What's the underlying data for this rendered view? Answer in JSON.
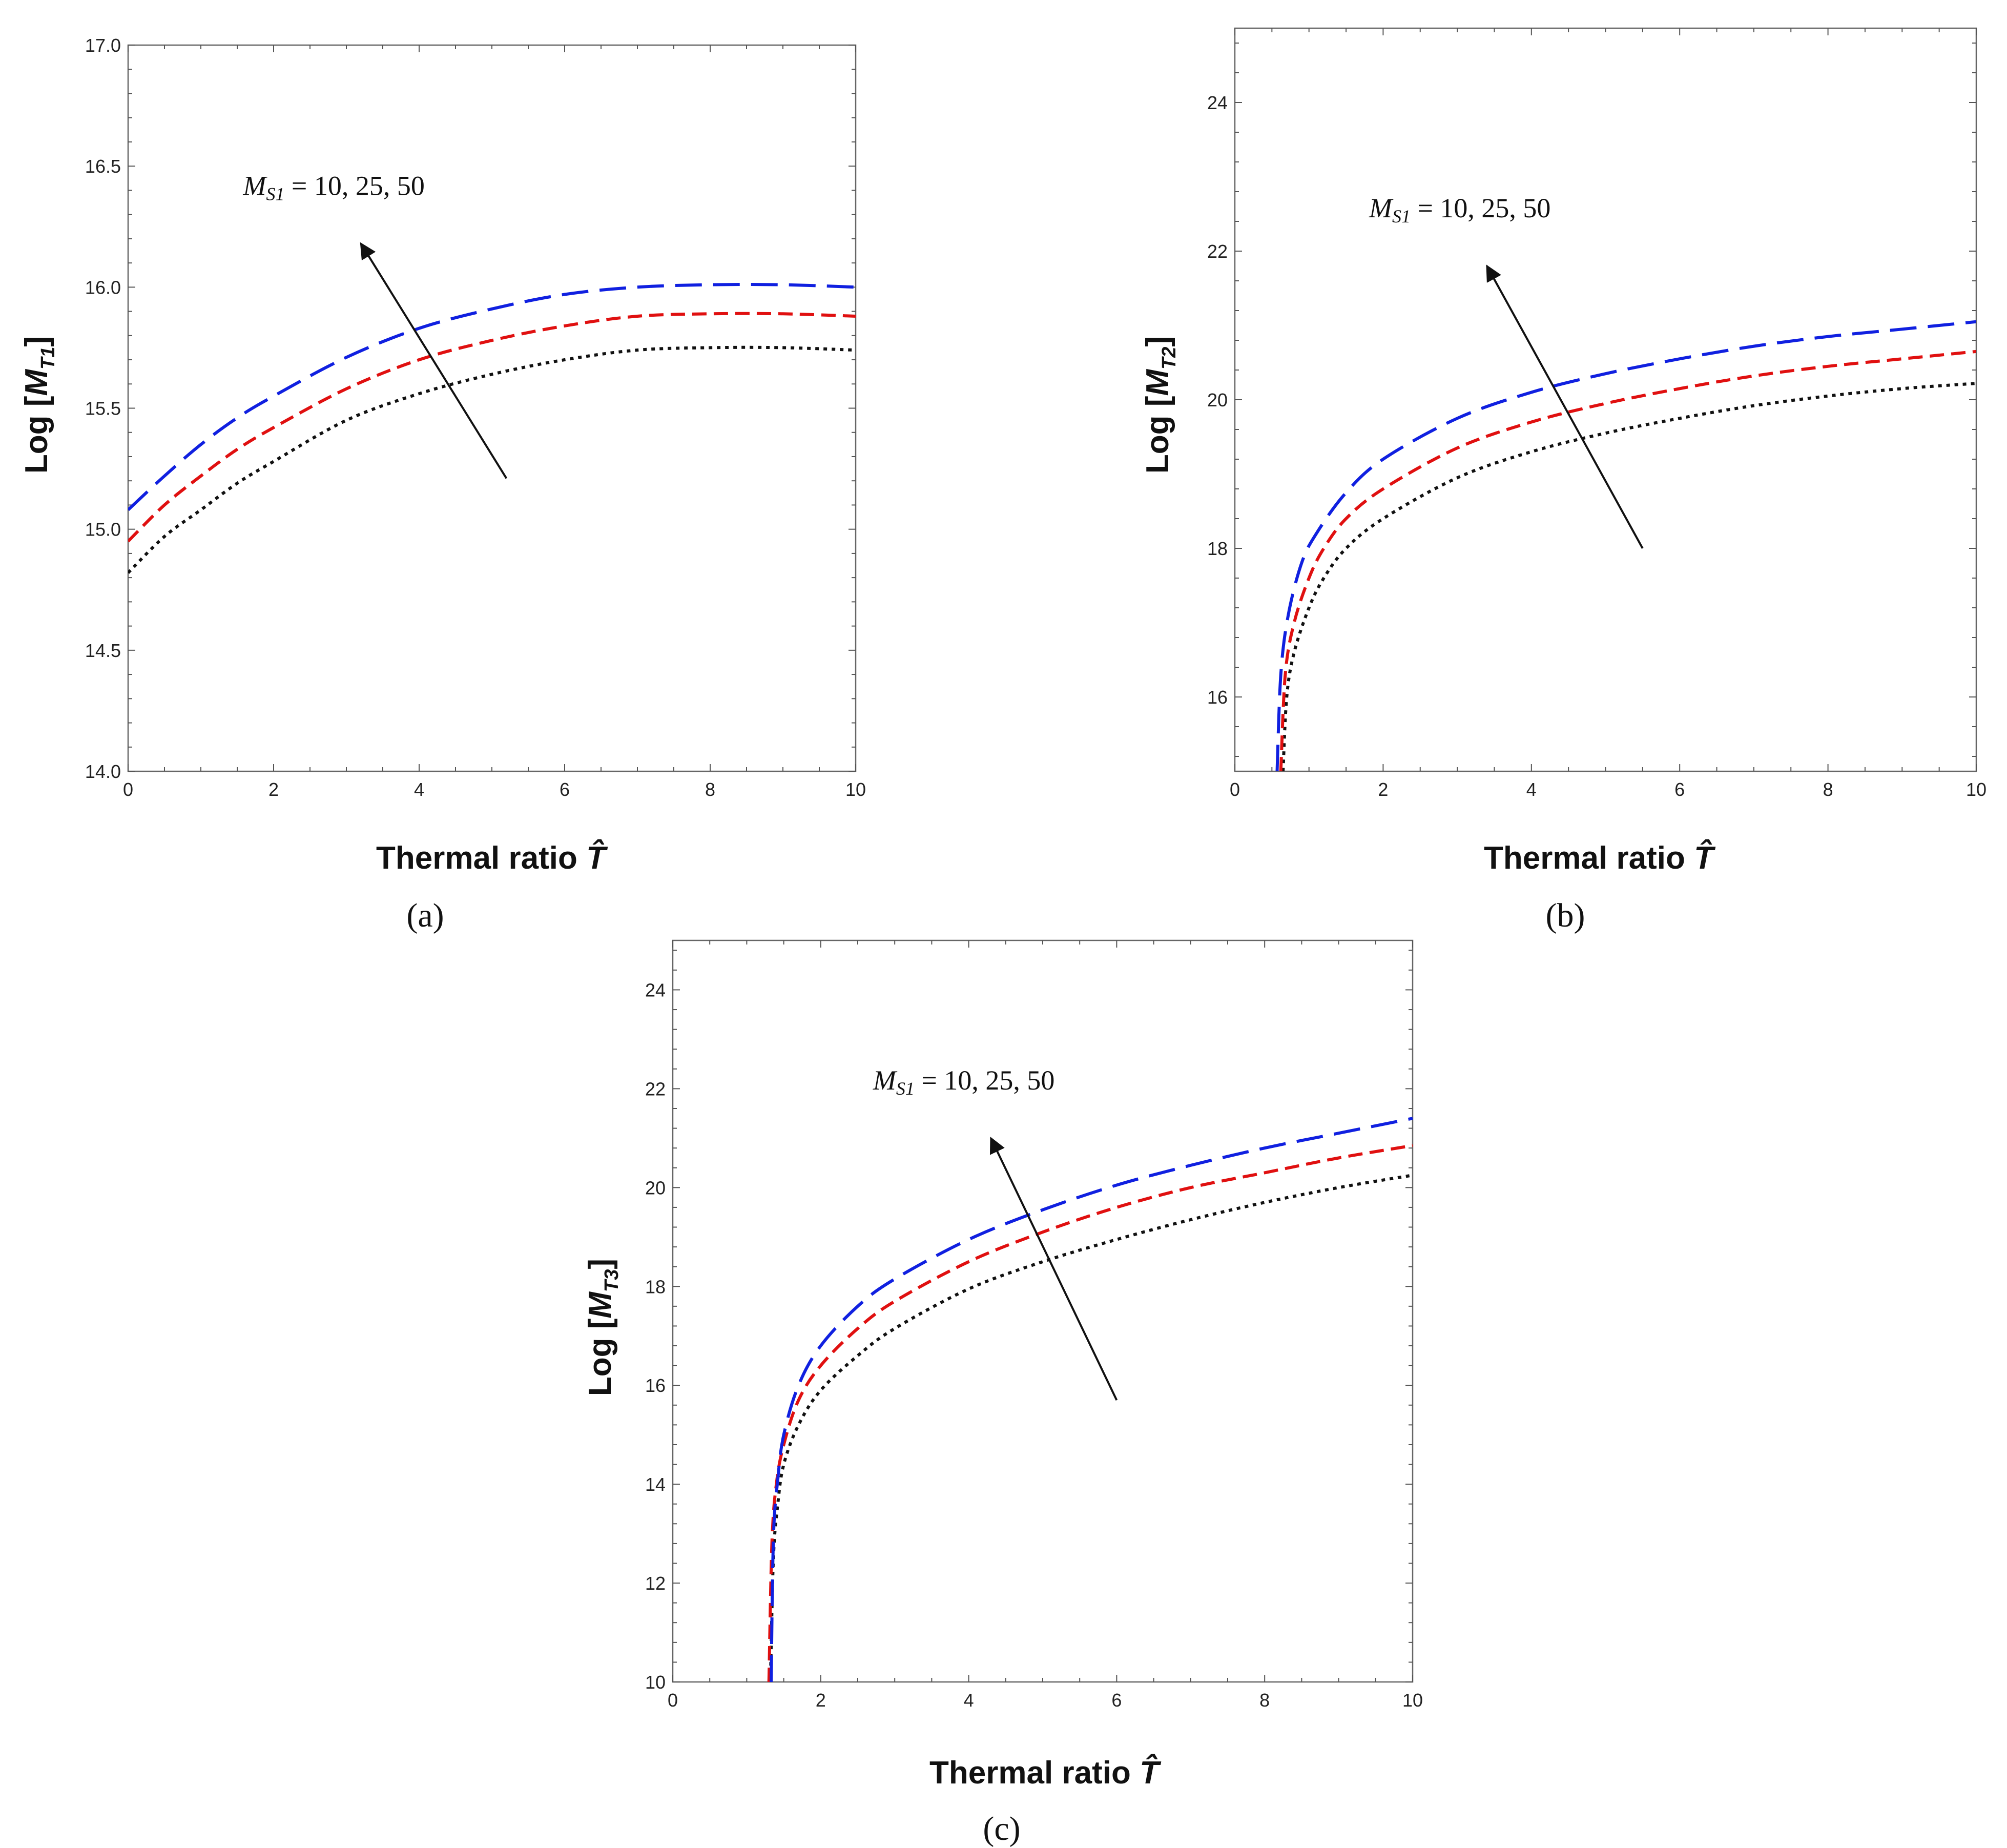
{
  "figure": {
    "panels": [
      "a",
      "b",
      "c"
    ]
  },
  "chart_data": [
    {
      "id": "a",
      "type": "line",
      "panel_label": "(a)",
      "xlabel": "Thermal ratio",
      "xlabel_symbol": "T̂",
      "ylabel": "Log",
      "ylabel_symbol": "M",
      "ylabel_subscript": "T1",
      "xlim": [
        0,
        10
      ],
      "ylim": [
        14.0,
        17.0
      ],
      "xticks": [
        "0",
        "2",
        "4",
        "6",
        "8",
        "10"
      ],
      "yticks": [
        "14.0",
        "14.5",
        "15.0",
        "15.5",
        "16.0",
        "16.5",
        "17.0"
      ],
      "annotation": "M_S1 = 10, 25, 50",
      "annotation_main": "M",
      "annotation_sub": "S1",
      "annotation_rest": " = 10, 25, 50",
      "arrow": {
        "from": [
          5.2,
          15.21
        ],
        "to": [
          3.2,
          16.18
        ]
      },
      "series": [
        {
          "name": "M_S1 = 10",
          "color": "#111111",
          "dash": "dotted",
          "x": [
            0,
            0.5,
            1,
            1.5,
            2,
            3,
            4,
            5,
            6,
            7,
            8,
            9,
            10
          ],
          "y": [
            14.82,
            14.97,
            15.08,
            15.19,
            15.28,
            15.45,
            15.56,
            15.64,
            15.7,
            15.74,
            15.75,
            15.75,
            15.74
          ]
        },
        {
          "name": "M_S1 = 25",
          "color": "#e01010",
          "dash": "medium",
          "x": [
            0,
            0.5,
            1,
            1.5,
            2,
            3,
            4,
            5,
            6,
            7,
            8,
            9,
            10
          ],
          "y": [
            14.95,
            15.1,
            15.22,
            15.33,
            15.42,
            15.58,
            15.7,
            15.78,
            15.84,
            15.88,
            15.89,
            15.89,
            15.88
          ]
        },
        {
          "name": "M_S1 = 50",
          "color": "#1020e0",
          "dash": "long",
          "x": [
            0,
            0.5,
            1,
            1.5,
            2,
            3,
            4,
            5,
            6,
            7,
            8,
            9,
            10
          ],
          "y": [
            15.08,
            15.22,
            15.35,
            15.46,
            15.55,
            15.71,
            15.83,
            15.91,
            15.97,
            16.0,
            16.01,
            16.01,
            16.0
          ]
        }
      ]
    },
    {
      "id": "b",
      "type": "line",
      "panel_label": "(b)",
      "xlabel": "Thermal ratio",
      "xlabel_symbol": "T̂",
      "ylabel": "Log",
      "ylabel_symbol": "M",
      "ylabel_subscript": "T2",
      "xlim": [
        0,
        10
      ],
      "ylim": [
        15,
        25
      ],
      "xticks": [
        "0",
        "2",
        "4",
        "6",
        "8",
        "10"
      ],
      "yticks": [
        "16",
        "18",
        "20",
        "22",
        "24"
      ],
      "annotation": "M_S1 = 10, 25, 50",
      "annotation_main": "M",
      "annotation_sub": "S1",
      "annotation_rest": " = 10, 25, 50",
      "arrow": {
        "from": [
          5.5,
          18.0
        ],
        "to": [
          3.4,
          21.8
        ]
      },
      "series": [
        {
          "name": "M_S1 = 10",
          "color": "#111111",
          "dash": "dotted",
          "x": [
            0.65,
            0.7,
            0.8,
            1.0,
            1.2,
            1.5,
            2,
            3,
            4,
            5,
            6,
            7,
            8,
            9,
            10
          ],
          "y": [
            15.0,
            16.0,
            16.6,
            17.2,
            17.6,
            18.0,
            18.4,
            18.95,
            19.3,
            19.55,
            19.75,
            19.92,
            20.05,
            20.15,
            20.22
          ]
        },
        {
          "name": "M_S1 = 25",
          "color": "#e01010",
          "dash": "medium",
          "x": [
            0.62,
            0.68,
            0.8,
            1.0,
            1.2,
            1.5,
            2,
            3,
            4,
            5,
            6,
            7,
            8,
            9,
            10
          ],
          "y": [
            15.0,
            16.3,
            17.0,
            17.6,
            18.0,
            18.4,
            18.8,
            19.35,
            19.7,
            19.95,
            20.15,
            20.32,
            20.45,
            20.55,
            20.65
          ]
        },
        {
          "name": "M_S1 = 50",
          "color": "#1020e0",
          "dash": "long",
          "x": [
            0.57,
            0.62,
            0.72,
            0.9,
            1.1,
            1.5,
            2,
            3,
            4,
            5,
            6,
            7,
            8,
            9,
            10
          ],
          "y": [
            15.0,
            16.3,
            17.1,
            17.8,
            18.2,
            18.75,
            19.2,
            19.75,
            20.1,
            20.35,
            20.55,
            20.72,
            20.85,
            20.95,
            21.05
          ]
        }
      ]
    },
    {
      "id": "c",
      "type": "line",
      "panel_label": "(c)",
      "xlabel": "Thermal ratio",
      "xlabel_symbol": "T̂",
      "ylabel": "Log",
      "ylabel_symbol": "M",
      "ylabel_subscript": "T3",
      "xlim": [
        0,
        10
      ],
      "ylim": [
        10,
        25
      ],
      "xticks": [
        "0",
        "2",
        "4",
        "6",
        "8",
        "10"
      ],
      "yticks": [
        "10",
        "12",
        "14",
        "16",
        "18",
        "20",
        "22",
        "24"
      ],
      "annotation": "M_S1 = 10, 25, 50",
      "annotation_main": "M",
      "annotation_sub": "S1",
      "annotation_rest": " = 10, 25, 50",
      "arrow": {
        "from": [
          6.0,
          15.7
        ],
        "to": [
          4.3,
          21.0
        ]
      },
      "series": [
        {
          "name": "M_S1 = 10",
          "color": "#111111",
          "dash": "dotted",
          "x": [
            1.32,
            1.36,
            1.42,
            1.5,
            1.7,
            2,
            2.5,
            3,
            4,
            5,
            6,
            7,
            8,
            9,
            10
          ],
          "y": [
            10.0,
            12.5,
            13.6,
            14.4,
            15.2,
            15.9,
            16.6,
            17.15,
            17.95,
            18.5,
            18.95,
            19.35,
            19.7,
            20.0,
            20.25
          ]
        },
        {
          "name": "M_S1 = 25",
          "color": "#e01010",
          "dash": "medium",
          "x": [
            1.3,
            1.34,
            1.4,
            1.5,
            1.7,
            2,
            2.5,
            3,
            4,
            5,
            6,
            7,
            8,
            9,
            10
          ],
          "y": [
            10.0,
            12.8,
            14.0,
            14.8,
            15.7,
            16.4,
            17.15,
            17.7,
            18.5,
            19.1,
            19.6,
            20.0,
            20.3,
            20.6,
            20.85
          ]
        },
        {
          "name": "M_S1 = 50",
          "color": "#1020e0",
          "dash": "long",
          "x": [
            1.33,
            1.36,
            1.42,
            1.5,
            1.7,
            2,
            2.5,
            3,
            4,
            5,
            6,
            7,
            8,
            9,
            10
          ],
          "y": [
            10.0,
            12.9,
            14.1,
            15.0,
            16.0,
            16.8,
            17.6,
            18.15,
            18.95,
            19.55,
            20.05,
            20.45,
            20.8,
            21.1,
            21.4
          ]
        }
      ]
    }
  ]
}
